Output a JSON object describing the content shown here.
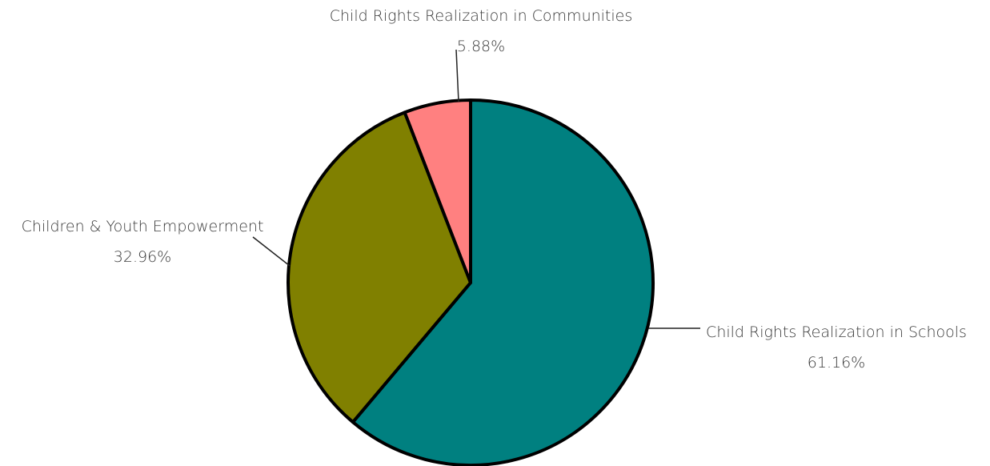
{
  "chart_data": {
    "type": "pie",
    "title": "",
    "slices": [
      {
        "label": "Child Rights Realization in Schools",
        "value": 61.16,
        "display": "61.16%",
        "color": "#008080"
      },
      {
        "label": "Children & Youth Empowerment",
        "value": 32.96,
        "display": "32.96%",
        "color": "#808000"
      },
      {
        "label": "Child Rights Realization in Communities",
        "value": 5.88,
        "display": "5.88%",
        "color": "#FF8080"
      }
    ]
  }
}
